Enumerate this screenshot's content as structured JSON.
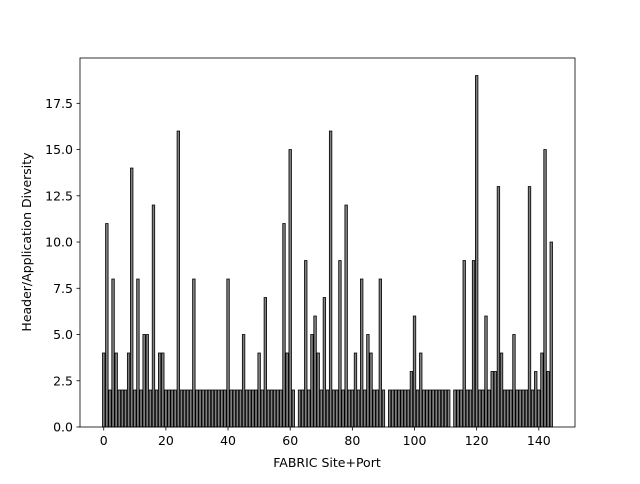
{
  "chart_data": {
    "type": "bar",
    "xlabel": "FABRIC Site+Port",
    "ylabel": "Header/Application Diversity",
    "x": [
      0,
      1,
      2,
      3,
      4,
      5,
      6,
      7,
      8,
      9,
      10,
      11,
      12,
      13,
      14,
      15,
      16,
      17,
      18,
      19,
      20,
      21,
      22,
      23,
      24,
      25,
      26,
      27,
      28,
      29,
      30,
      31,
      32,
      33,
      34,
      35,
      36,
      37,
      38,
      39,
      40,
      41,
      42,
      43,
      44,
      45,
      46,
      47,
      48,
      49,
      50,
      51,
      52,
      53,
      54,
      55,
      56,
      57,
      58,
      59,
      60,
      61,
      62,
      63,
      64,
      65,
      66,
      67,
      68,
      69,
      70,
      71,
      72,
      73,
      74,
      75,
      76,
      77,
      78,
      79,
      80,
      81,
      82,
      83,
      84,
      85,
      86,
      87,
      88,
      89,
      90,
      91,
      92,
      93,
      94,
      95,
      96,
      97,
      98,
      99,
      100,
      101,
      102,
      103,
      104,
      105,
      106,
      107,
      108,
      109,
      110,
      111,
      112,
      113,
      114,
      115,
      116,
      117,
      118,
      119,
      120,
      121,
      122,
      123,
      124,
      125,
      126,
      127,
      128,
      129,
      130,
      131,
      132,
      133,
      134,
      135,
      136,
      137,
      138,
      139,
      140,
      141,
      142,
      143,
      144
    ],
    "values": [
      4,
      11,
      2,
      8,
      4,
      2,
      2,
      2,
      4,
      14,
      2,
      8,
      2,
      5,
      5,
      2,
      12,
      2,
      4,
      4,
      2,
      2,
      2,
      2,
      16,
      2,
      2,
      2,
      2,
      8,
      2,
      2,
      2,
      2,
      2,
      2,
      2,
      2,
      2,
      2,
      8,
      2,
      2,
      2,
      2,
      5,
      2,
      2,
      2,
      2,
      4,
      2,
      7,
      2,
      2,
      2,
      2,
      2,
      11,
      4,
      15,
      2,
      0,
      2,
      2,
      9,
      2,
      5,
      6,
      4,
      2,
      7,
      2,
      16,
      2,
      2,
      9,
      2,
      12,
      2,
      2,
      4,
      2,
      8,
      2,
      5,
      4,
      2,
      2,
      8,
      2,
      0,
      2,
      2,
      2,
      2,
      2,
      2,
      2,
      3,
      6,
      2,
      4,
      2,
      2,
      2,
      2,
      2,
      2,
      2,
      2,
      2,
      0,
      2,
      2,
      2,
      9,
      2,
      2,
      9,
      19,
      2,
      2,
      6,
      2,
      3,
      3,
      13,
      4,
      2,
      2,
      2,
      5,
      2,
      2,
      2,
      2,
      13,
      2,
      3,
      2,
      4,
      15,
      3,
      10
    ],
    "color": "#808080",
    "edgecolor": "#000000",
    "xlim": [
      -7.64,
      151.64
    ],
    "xticks": [
      0,
      20,
      40,
      60,
      80,
      100,
      120,
      140
    ],
    "ylim": [
      0,
      19.95
    ],
    "yticks": [
      {
        "value": 0,
        "label": "0.0"
      },
      {
        "value": 2.5,
        "label": "2.5"
      },
      {
        "value": 5,
        "label": "5.0"
      },
      {
        "value": 7.5,
        "label": "7.5"
      },
      {
        "value": 10,
        "label": "10.0"
      },
      {
        "value": 12.5,
        "label": "12.5"
      },
      {
        "value": 15,
        "label": "15.0"
      },
      {
        "value": 17.5,
        "label": "17.5"
      }
    ]
  }
}
